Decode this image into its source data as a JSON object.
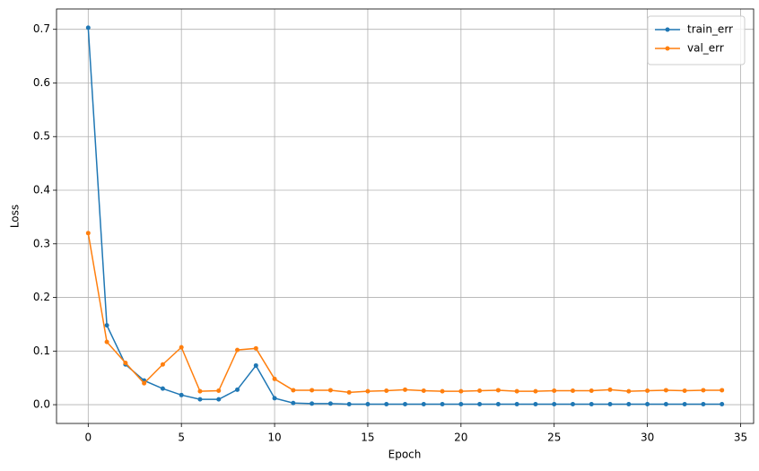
{
  "chart_data": {
    "type": "line",
    "x_label": "Epoch",
    "y_label": "Loss",
    "x": [
      0,
      1,
      2,
      3,
      4,
      5,
      6,
      7,
      8,
      9,
      10,
      11,
      12,
      13,
      14,
      15,
      16,
      17,
      18,
      19,
      20,
      21,
      22,
      23,
      24,
      25,
      26,
      27,
      28,
      29,
      30,
      31,
      32,
      33,
      34
    ],
    "series": [
      {
        "name": "train_err",
        "color": "#1f77b4",
        "values": [
          0.703,
          0.148,
          0.075,
          0.045,
          0.03,
          0.018,
          0.01,
          0.01,
          0.028,
          0.073,
          0.012,
          0.003,
          0.002,
          0.002,
          0.001,
          0.001,
          0.001,
          0.001,
          0.001,
          0.001,
          0.001,
          0.001,
          0.001,
          0.001,
          0.001,
          0.001,
          0.001,
          0.001,
          0.001,
          0.001,
          0.001,
          0.001,
          0.001,
          0.001,
          0.001
        ]
      },
      {
        "name": "val_err",
        "color": "#ff7f0e",
        "values": [
          0.32,
          0.117,
          0.078,
          0.04,
          0.075,
          0.107,
          0.025,
          0.026,
          0.102,
          0.105,
          0.048,
          0.027,
          0.027,
          0.027,
          0.023,
          0.025,
          0.026,
          0.028,
          0.026,
          0.025,
          0.025,
          0.026,
          0.027,
          0.025,
          0.025,
          0.026,
          0.026,
          0.026,
          0.028,
          0.025,
          0.026,
          0.027,
          0.026,
          0.027,
          0.027
        ]
      }
    ],
    "xlim": [
      -1.7,
      35.7
    ],
    "ylim": [
      -0.035,
      0.738
    ],
    "xticks": [
      0,
      5,
      10,
      15,
      20,
      25,
      30,
      35
    ],
    "yticks": [
      {
        "value": 0,
        "label": "0.0"
      },
      0.1,
      0.2,
      0.3,
      0.4,
      0.5,
      0.6,
      0.7
    ],
    "grid": true,
    "legend": "upper right"
  }
}
